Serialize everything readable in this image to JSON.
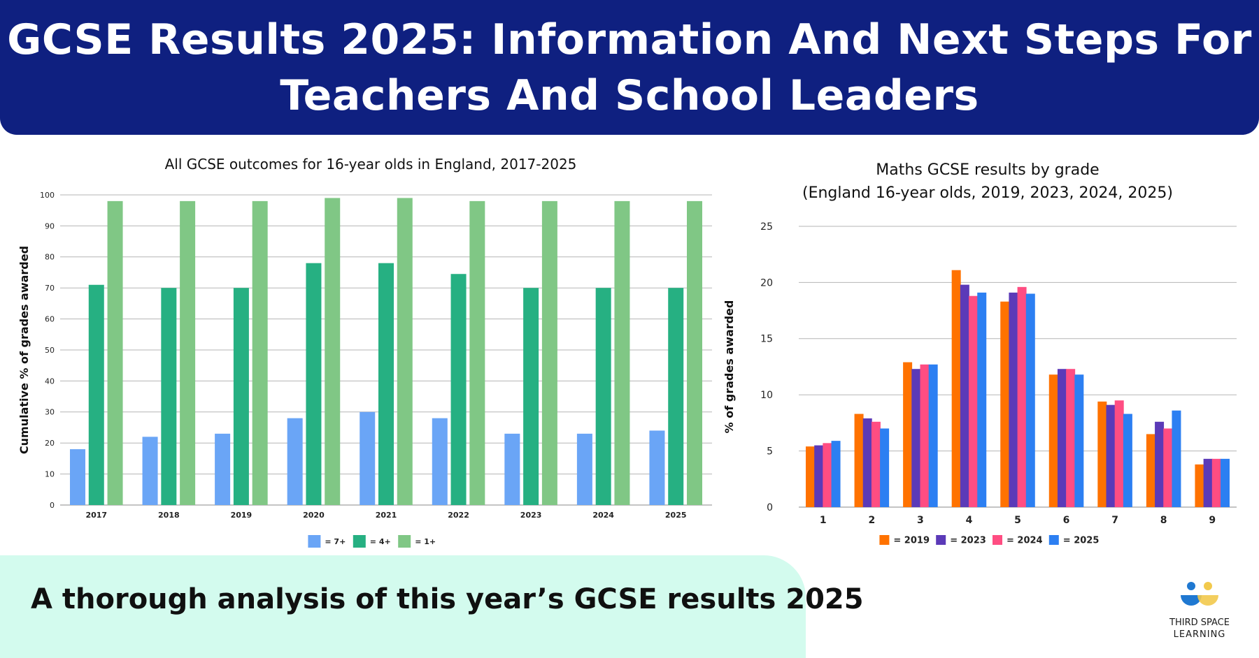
{
  "header": {
    "title": "GCSE Results 2025: Information And Next Steps For Teachers And School Leaders"
  },
  "footer": {
    "text": "A thorough analysis of this year’s GCSE results 2025"
  },
  "logo": {
    "line1": "THIRD SPACE",
    "line2": "LEARNING",
    "colors": {
      "left": "#1f78d1",
      "right": "#f2c94c"
    }
  },
  "chart_data": [
    {
      "type": "bar",
      "title": "All GCSE outcomes for 16-year olds in England, 2017-2025",
      "ylabel": "Cumulative % of grades awarded",
      "xlabel": "",
      "ylim": [
        0,
        100
      ],
      "yticks": [
        0,
        10,
        20,
        30,
        40,
        50,
        60,
        70,
        80,
        90,
        100
      ],
      "grid": true,
      "legend_position": "bottom",
      "categories": [
        "2017",
        "2018",
        "2019",
        "2020",
        "2021",
        "2022",
        "2023",
        "2024",
        "2025"
      ],
      "series": [
        {
          "name": "= 7+",
          "color": "#6aa5f6",
          "values": [
            18,
            22,
            23,
            28,
            30,
            28,
            23,
            23,
            24
          ]
        },
        {
          "name": "= 4+",
          "color": "#26b082",
          "values": [
            71,
            70,
            70,
            78,
            78,
            74.5,
            70,
            70,
            70
          ]
        },
        {
          "name": "= 1+",
          "color": "#80c785",
          "values": [
            98,
            98,
            98,
            99,
            99,
            98,
            98,
            98,
            98
          ]
        }
      ]
    },
    {
      "type": "bar",
      "title": "Maths GCSE results by grade",
      "subtitle": "(England 16-year olds, 2019, 2023, 2024, 2025)",
      "ylabel": "% of grades awarded",
      "xlabel": "",
      "ylim": [
        0,
        25
      ],
      "yticks": [
        0,
        5,
        10,
        15,
        20,
        25
      ],
      "grid": true,
      "legend_position": "bottom",
      "categories": [
        "1",
        "2",
        "3",
        "4",
        "5",
        "6",
        "7",
        "8",
        "9"
      ],
      "series": [
        {
          "name": "= 2019",
          "color": "#ff7200",
          "values": [
            5.4,
            8.3,
            12.9,
            21.1,
            18.3,
            11.8,
            9.4,
            6.5,
            3.8
          ]
        },
        {
          "name": "= 2023",
          "color": "#5b3ab8",
          "values": [
            5.5,
            7.9,
            12.3,
            19.8,
            19.1,
            12.3,
            9.1,
            7.6,
            4.3
          ]
        },
        {
          "name": "= 2024",
          "color": "#ff4d82",
          "values": [
            5.7,
            7.6,
            12.7,
            18.8,
            19.6,
            12.3,
            9.5,
            7.0,
            4.3
          ]
        },
        {
          "name": "= 2025",
          "color": "#2c7ff2",
          "values": [
            5.9,
            7.0,
            12.7,
            19.1,
            19.0,
            11.8,
            8.3,
            8.6,
            4.3
          ]
        }
      ]
    }
  ]
}
